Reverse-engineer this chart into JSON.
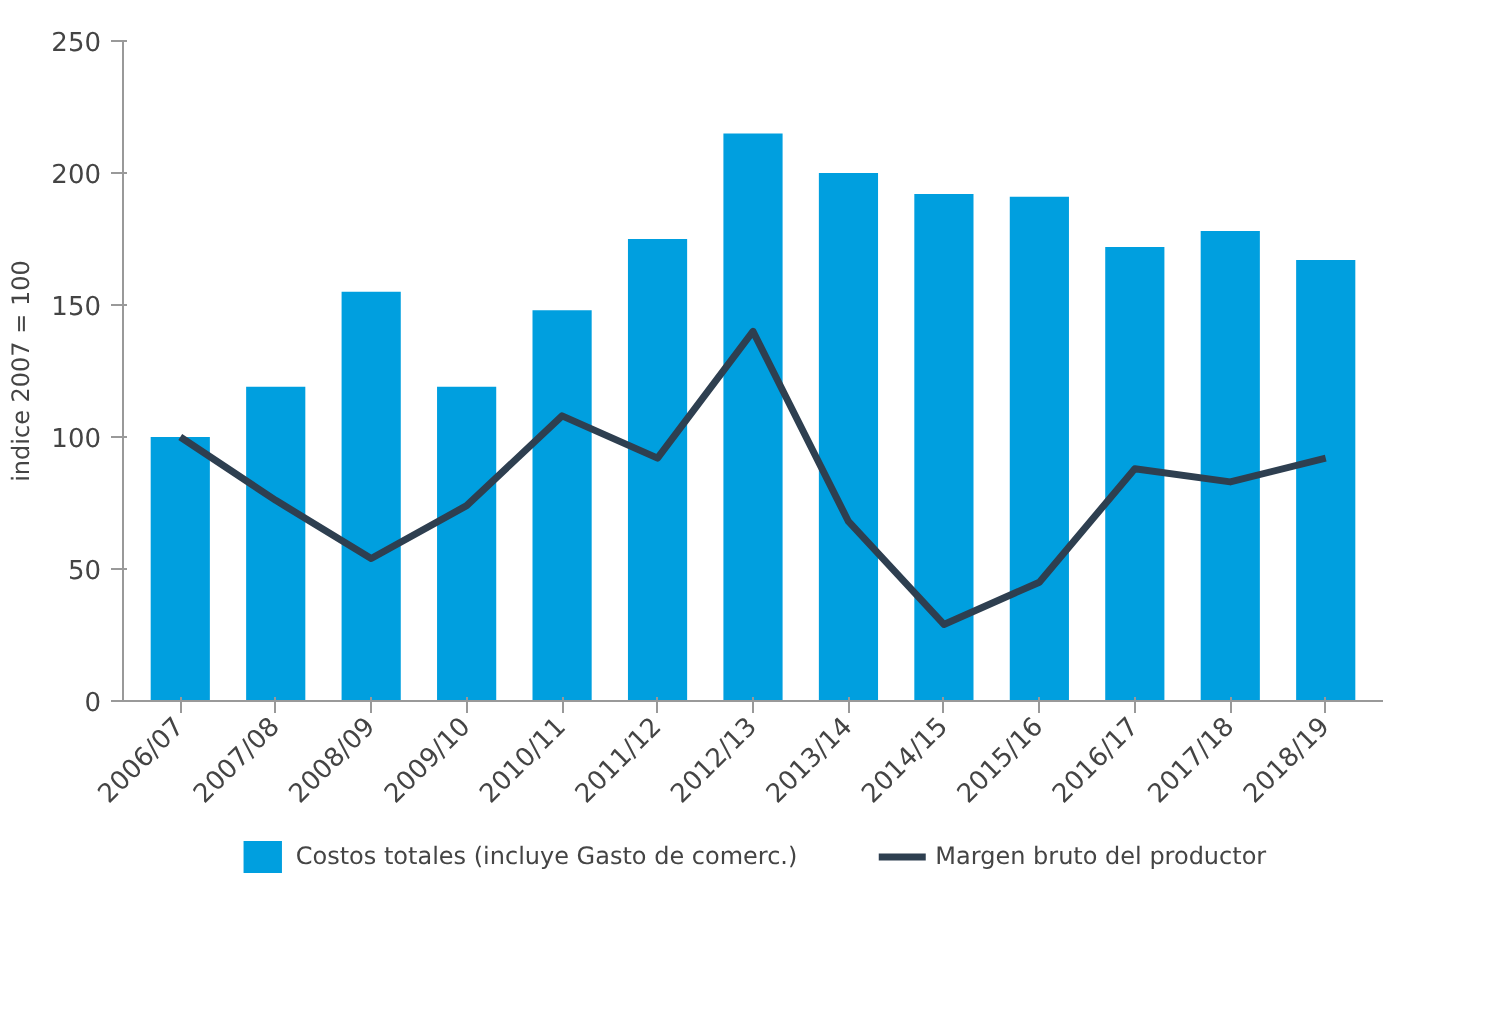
{
  "chart_data": {
    "type": "bar",
    "ylabel": "indice 2007 = 100",
    "categories": [
      "2006/07",
      "2007/08",
      "2008/09",
      "2009/10",
      "2010/11",
      "2011/12",
      "2012/13",
      "2013/14",
      "2014/15",
      "2015/16",
      "2016/17",
      "2017/18",
      "2018/19"
    ],
    "series": [
      {
        "name": "Costos totales (incluye Gasto de comerc.)",
        "color": "#009fdf",
        "values": [
          100,
          119,
          155,
          119,
          148,
          175,
          215,
          200,
          192,
          191,
          172,
          178,
          167
        ]
      },
      {
        "type": "line",
        "name": "Margen bruto del productor",
        "color": "#2e3f50",
        "values": [
          100,
          76,
          54,
          74,
          108,
          92,
          140,
          68,
          29,
          45,
          88,
          83,
          92
        ]
      }
    ],
    "ylim": [
      0,
      250
    ],
    "yticks": [
      0,
      50,
      100,
      150,
      200,
      250
    ],
    "grid": false,
    "legend": "bottom",
    "line_style": "solid"
  }
}
